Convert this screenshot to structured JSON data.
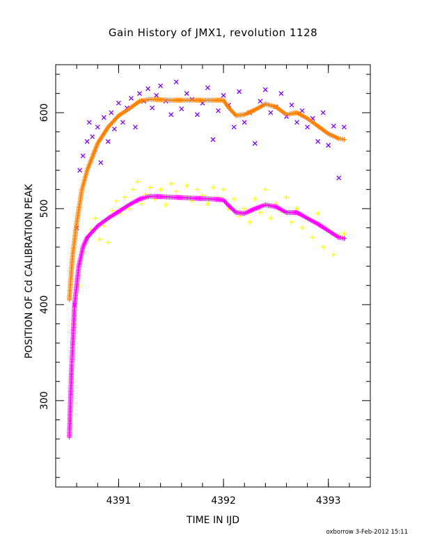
{
  "chart_data": {
    "type": "scatter",
    "title": "Gain History of JMX1, revolution 1128",
    "xlabel": "TIME IN IJD",
    "ylabel": "POSITION OF Cd CALIBRATION PEAK",
    "xlim": [
      4390.4,
      4393.4
    ],
    "ylim": [
      210,
      650
    ],
    "xticks": [
      4391,
      4392,
      4393
    ],
    "yticks": [
      300,
      400,
      500,
      600
    ],
    "grid": false,
    "legend": "none",
    "series": [
      {
        "color": "#ff8000",
        "marker": "+",
        "style": "dense-curve",
        "x": [
          4390.53,
          4390.56,
          4390.6,
          4390.65,
          4390.7,
          4390.8,
          4390.9,
          4391.0,
          4391.1,
          4391.2,
          4391.3,
          4391.5,
          4391.7,
          4391.9,
          4392.0,
          4392.05,
          4392.12,
          4392.2,
          4392.3,
          4392.4,
          4392.5,
          4392.6,
          4392.7,
          4392.8,
          4392.9,
          4393.0,
          4393.1,
          4393.15
        ],
        "y": [
          405,
          450,
          485,
          520,
          540,
          568,
          585,
          597,
          604,
          612,
          614,
          613,
          613,
          613,
          613,
          605,
          597,
          598,
          603,
          609,
          606,
          598,
          600,
          594,
          586,
          578,
          573,
          572
        ]
      },
      {
        "color": "#ff00ff",
        "marker": "+",
        "style": "dense-curve",
        "x": [
          4390.53,
          4390.55,
          4390.58,
          4390.62,
          4390.66,
          4390.7,
          4390.8,
          4390.9,
          4391.0,
          4391.1,
          4391.2,
          4391.3,
          4391.5,
          4391.7,
          4391.9,
          4392.0,
          4392.05,
          4392.12,
          4392.2,
          4392.3,
          4392.4,
          4392.5,
          4392.6,
          4392.7,
          4392.8,
          4392.9,
          4393.0,
          4393.1,
          4393.15
        ],
        "y": [
          262,
          330,
          400,
          440,
          460,
          470,
          482,
          490,
          497,
          504,
          510,
          513,
          512,
          511,
          510,
          509,
          503,
          496,
          495,
          500,
          504,
          502,
          496,
          496,
          490,
          484,
          477,
          470,
          469
        ]
      },
      {
        "color": "#8000ff",
        "marker": "x",
        "style": "scatter",
        "x": [
          4390.58,
          4390.6,
          4390.63,
          4390.66,
          4390.7,
          4390.72,
          4390.75,
          4390.8,
          4390.83,
          4390.86,
          4390.9,
          4390.93,
          4390.96,
          4391.0,
          4391.04,
          4391.08,
          4391.12,
          4391.16,
          4391.2,
          4391.24,
          4391.28,
          4391.32,
          4391.36,
          4391.4,
          4391.45,
          4391.5,
          4391.55,
          4391.6,
          4391.65,
          4391.7,
          4391.75,
          4391.8,
          4391.85,
          4391.9,
          4391.95,
          4392.0,
          4392.05,
          4392.1,
          4392.15,
          4392.2,
          4392.25,
          4392.3,
          4392.35,
          4392.4,
          4392.45,
          4392.5,
          4392.55,
          4392.6,
          4392.65,
          4392.7,
          4392.75,
          4392.8,
          4392.85,
          4392.9,
          4392.95,
          4393.0,
          4393.05,
          4393.1,
          4393.15
        ],
        "y": [
          400,
          480,
          540,
          555,
          570,
          590,
          575,
          585,
          548,
          595,
          570,
          600,
          583,
          610,
          590,
          605,
          615,
          585,
          620,
          612,
          625,
          605,
          618,
          628,
          612,
          598,
          632,
          604,
          620,
          614,
          598,
          610,
          626,
          572,
          602,
          618,
          608,
          585,
          622,
          590,
          600,
          568,
          612,
          624,
          600,
          606,
          620,
          596,
          608,
          590,
          602,
          585,
          594,
          570,
          600,
          566,
          586,
          532,
          585
        ]
      },
      {
        "color": "#ffff00",
        "marker": "+",
        "style": "scatter",
        "x": [
          4390.58,
          4390.62,
          4390.66,
          4390.7,
          4390.74,
          4390.78,
          4390.82,
          4390.86,
          4390.9,
          4390.94,
          4390.98,
          4391.02,
          4391.06,
          4391.1,
          4391.14,
          4391.18,
          4391.22,
          4391.26,
          4391.3,
          4391.35,
          4391.4,
          4391.45,
          4391.5,
          4391.55,
          4391.6,
          4391.65,
          4391.7,
          4391.75,
          4391.8,
          4391.85,
          4391.9,
          4391.95,
          4392.0,
          4392.05,
          4392.1,
          4392.15,
          4392.2,
          4392.25,
          4392.3,
          4392.35,
          4392.4,
          4392.45,
          4392.5,
          4392.55,
          4392.6,
          4392.65,
          4392.7,
          4392.75,
          4392.8,
          4392.85,
          4392.9,
          4392.95,
          4393.0,
          4393.05,
          4393.1,
          4393.15
        ],
        "y": [
          380,
          420,
          455,
          470,
          478,
          490,
          468,
          482,
          465,
          498,
          508,
          495,
          512,
          500,
          520,
          528,
          505,
          515,
          522,
          510,
          520,
          504,
          526,
          518,
          512,
          524,
          508,
          520,
          514,
          505,
          522,
          512,
          520,
          500,
          510,
          492,
          500,
          486,
          510,
          496,
          520,
          490,
          505,
          498,
          512,
          486,
          500,
          480,
          490,
          470,
          495,
          460,
          478,
          452,
          472,
          474
        ]
      }
    ]
  },
  "footer": {
    "stamp": "oxborrow  3-Feb-2012 15:11"
  }
}
